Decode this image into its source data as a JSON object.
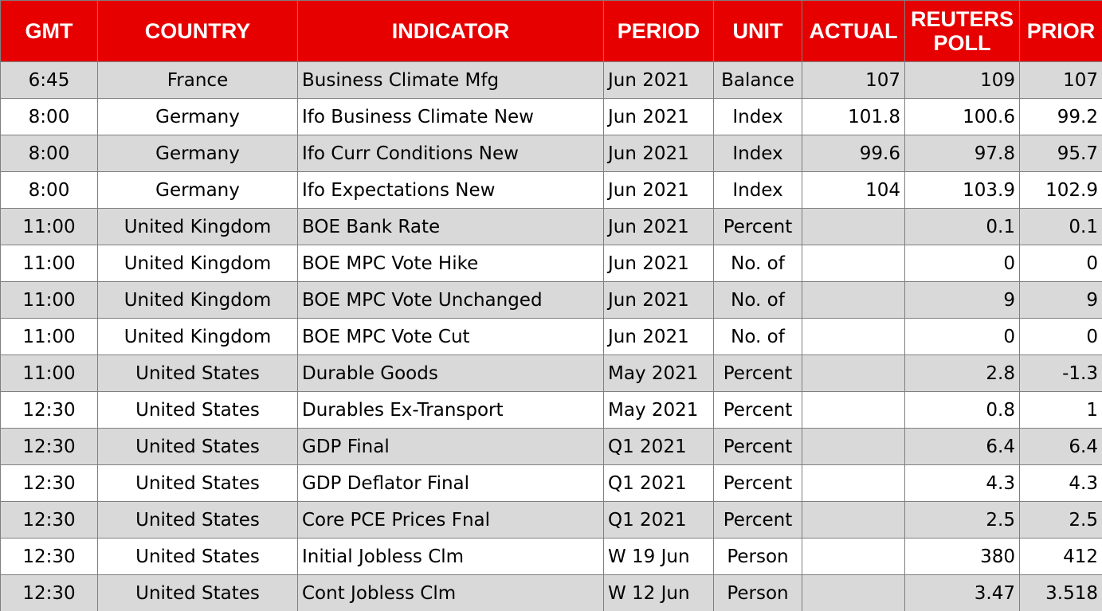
{
  "table": {
    "headers": [
      "GMT",
      "COUNTRY",
      "INDICATOR",
      "PERIOD",
      "UNIT",
      "ACTUAL",
      "REUTERS POLL",
      "PRIOR"
    ],
    "rows": [
      [
        "6:45",
        "France",
        "Business Climate Mfg",
        "Jun 2021",
        "Balance",
        107,
        109,
        107
      ],
      [
        "8:00",
        "Germany",
        "Ifo Business Climate New",
        "Jun 2021",
        "Index",
        101.8,
        100.6,
        99.2
      ],
      [
        "8:00",
        "Germany",
        "Ifo Curr Conditions New",
        "Jun 2021",
        "Index",
        99.6,
        97.8,
        95.7
      ],
      [
        "8:00",
        "Germany",
        "Ifo Expectations New",
        "Jun 2021",
        "Index",
        104,
        103.9,
        102.9
      ],
      [
        "11:00",
        "United Kingdom",
        "BOE Bank Rate",
        "Jun 2021",
        "Percent",
        null,
        0.1,
        0.1
      ],
      [
        "11:00",
        "United Kingdom",
        "BOE MPC Vote Hike",
        "Jun 2021",
        "No. of",
        null,
        0,
        0
      ],
      [
        "11:00",
        "United Kingdom",
        "BOE MPC Vote Unchanged",
        "Jun 2021",
        "No. of",
        null,
        9,
        9
      ],
      [
        "11:00",
        "United Kingdom",
        "BOE MPC Vote Cut",
        "Jun 2021",
        "No. of",
        null,
        0,
        0
      ],
      [
        "11:00",
        "United States",
        "Durable Goods",
        "May 2021",
        "Percent",
        null,
        2.8,
        -1.3
      ],
      [
        "12:30",
        "United States",
        "Durables Ex-Transport",
        "May 2021",
        "Percent",
        null,
        0.8,
        1
      ],
      [
        "12:30",
        "United States",
        "GDP Final",
        "Q1 2021",
        "Percent",
        null,
        6.4,
        6.4
      ],
      [
        "12:30",
        "United States",
        "GDP Deflator Final",
        "Q1 2021",
        "Percent",
        null,
        4.3,
        4.3
      ],
      [
        "12:30",
        "United States",
        "Core PCE Prices Fnal",
        "Q1 2021",
        "Percent",
        null,
        2.5,
        2.5
      ],
      [
        "12:30",
        "United States",
        "Initial Jobless Clm",
        "W 19 Jun",
        "Person",
        null,
        380,
        412
      ],
      [
        "12:30",
        "United States",
        "Cont Jobless Clm",
        "W 12 Jun",
        "Person",
        null,
        3.47,
        3.518
      ]
    ]
  }
}
